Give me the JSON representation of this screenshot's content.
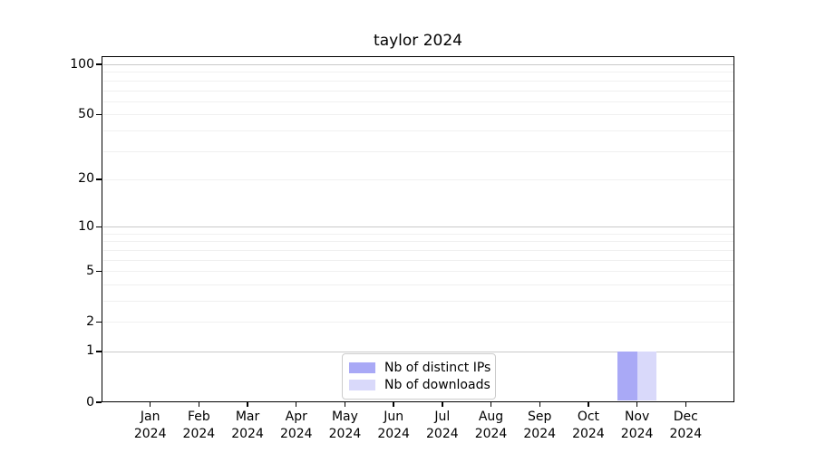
{
  "chart_data": {
    "type": "bar",
    "title": "taylor 2024",
    "categories": [
      "Jan",
      "Feb",
      "Mar",
      "Apr",
      "May",
      "Jun",
      "Jul",
      "Aug",
      "Sep",
      "Oct",
      "Nov",
      "Dec"
    ],
    "x_year": "2024",
    "series": [
      {
        "name": "Nb of distinct IPs",
        "color": "#a9a9f6",
        "values": [
          0,
          0,
          0,
          0,
          0,
          0,
          0,
          0,
          0,
          0,
          1,
          0
        ]
      },
      {
        "name": "Nb of downloads",
        "color": "#d9d9fa",
        "values": [
          0,
          0,
          0,
          0,
          0,
          0,
          0,
          0,
          0,
          0,
          1,
          0
        ]
      }
    ],
    "y_scale": "log1p",
    "y_ticks": [
      0,
      1,
      2,
      5,
      10,
      20,
      50,
      100
    ],
    "y_max": 112,
    "ylim": [
      0,
      112
    ],
    "xlabel": "",
    "ylabel": "",
    "grid": {
      "on": true,
      "major_values": [
        1,
        10,
        100
      ],
      "minor_values": [
        2,
        3,
        4,
        5,
        6,
        7,
        8,
        9,
        20,
        30,
        40,
        50,
        60,
        70,
        80,
        90
      ],
      "major_color": "#c9c9c9",
      "minor_color": "#f0f0f0"
    },
    "legend": {
      "position": "lower center",
      "entries": [
        "Nb of distinct IPs",
        "Nb of downloads"
      ]
    }
  }
}
